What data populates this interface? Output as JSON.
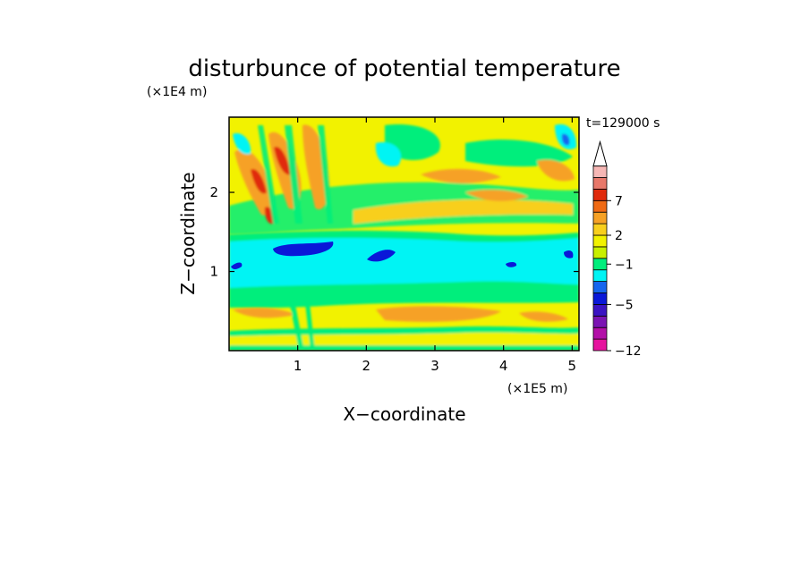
{
  "chart_data": {
    "type": "heatmap",
    "title": "disturbunce of potential temperature",
    "time_label": "t=129000 s",
    "xlabel": "X−coordinate",
    "ylabel": "Z−coordinate",
    "x_unit": "(×1E5 m)",
    "y_unit": "(×1E4 m)",
    "xlim": [
      0,
      5.1
    ],
    "ylim": [
      0,
      2.95
    ],
    "x_ticks": [
      "1",
      "2",
      "3",
      "4",
      "5"
    ],
    "y_ticks": [
      "1",
      "2"
    ],
    "x_tick_values": [
      1,
      2,
      3,
      4,
      5
    ],
    "y_tick_values": [
      1,
      2
    ],
    "colorbar": {
      "colors": [
        "#e6139e",
        "#b30fa8",
        "#7b13b3",
        "#3b13c3",
        "#0a18d8",
        "#1566ee",
        "#00f4f4",
        "#00ee7c",
        "#c8f000",
        "#f2f200",
        "#f8cf1d",
        "#f6a125",
        "#f06a14",
        "#e02a0c",
        "#e8786a",
        "#f6b7b5"
      ],
      "bands": 16,
      "extend_top": true,
      "labels": [
        {
          "text": "7",
          "band": 13
        },
        {
          "text": "2",
          "band": 10
        },
        {
          "text": "−1",
          "band": 7.5
        },
        {
          "text": "−5",
          "band": 4
        },
        {
          "text": "−12",
          "band": 0
        }
      ]
    },
    "fields": {
      "background_color": "#f2f200",
      "stable_layer": {
        "z_range": [
          0.95,
          1.45
        ],
        "color": "#00f4f4"
      },
      "low_level_band": {
        "z_range": [
          0.65,
          0.78
        ],
        "color": "#00ee7c"
      },
      "upper_warm_region": {
        "x_range": [
          0,
          1.6
        ],
        "z_range": [
          1.6,
          2.95
        ],
        "colors": [
          "#f6a125",
          "#f06a14"
        ]
      },
      "strong_cold_core": {
        "x_center": 1.05,
        "z_center": 1.3,
        "color": "#0a18d8"
      }
    }
  }
}
